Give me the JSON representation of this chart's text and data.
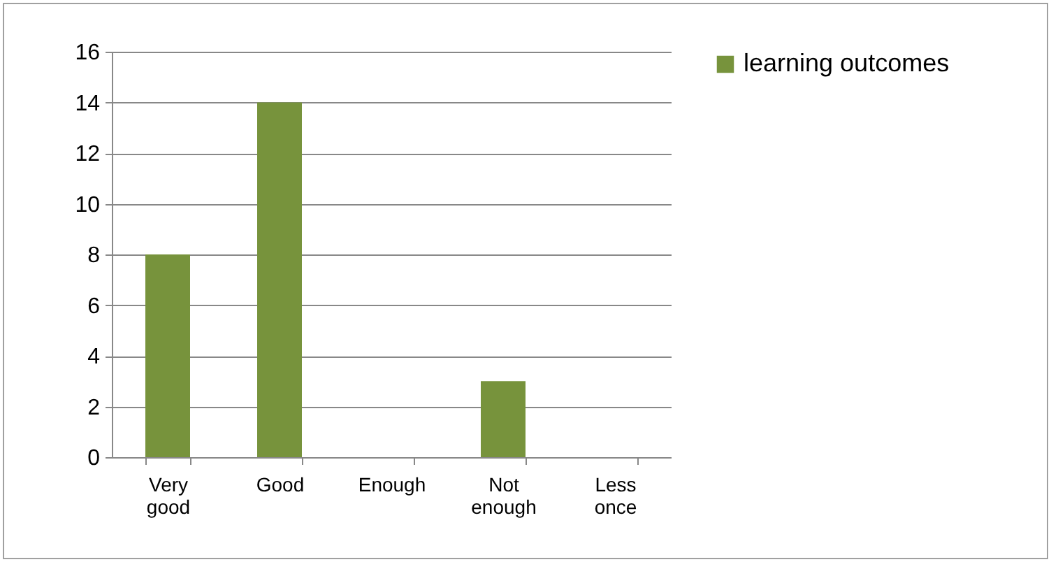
{
  "chart_data": {
    "type": "bar",
    "categories": [
      "Very good",
      "Good",
      "Enough",
      "Not enough",
      "Less once"
    ],
    "series": [
      {
        "name": "learning outcomes",
        "color": "#77933c",
        "values": [
          8,
          14,
          0,
          3,
          0
        ]
      }
    ],
    "ylim": [
      0,
      16
    ],
    "yticks": [
      0,
      2,
      4,
      6,
      8,
      10,
      12,
      14,
      16
    ],
    "grid": "y",
    "legend": "right"
  }
}
